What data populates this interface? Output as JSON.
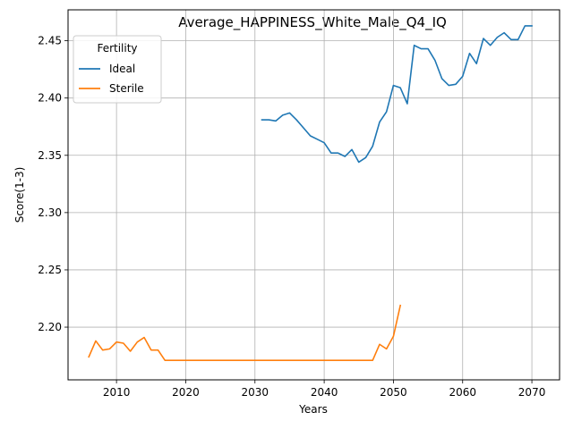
{
  "chart_data": {
    "type": "line",
    "title": "Average_HAPPINESS_White_Male_Q4_IQ",
    "xlabel": "Years",
    "ylabel": "Score(1-3)",
    "xlim": [
      2003,
      2074
    ],
    "ylim": [
      2.154,
      2.477
    ],
    "xticks": [
      2010,
      2020,
      2030,
      2040,
      2050,
      2060,
      2070
    ],
    "yticks": [
      2.2,
      2.25,
      2.3,
      2.35,
      2.4,
      2.45
    ],
    "grid": true,
    "legend": {
      "title": "Fertility",
      "placement": "top-left"
    },
    "series": [
      {
        "name": "Ideal",
        "color": "#1f77b4",
        "x": [
          2031,
          2032,
          2033,
          2034,
          2035,
          2036,
          2037,
          2038,
          2039,
          2040,
          2041,
          2042,
          2043,
          2044,
          2045,
          2046,
          2047,
          2048,
          2049,
          2050,
          2051,
          2052,
          2053,
          2054,
          2055,
          2056,
          2057,
          2058,
          2059,
          2060,
          2061,
          2062,
          2063,
          2064,
          2065,
          2066,
          2067,
          2068,
          2069,
          2070
        ],
        "values": [
          2.381,
          2.381,
          2.38,
          2.385,
          2.387,
          2.381,
          2.374,
          2.367,
          2.364,
          2.361,
          2.352,
          2.352,
          2.349,
          2.355,
          2.344,
          2.348,
          2.358,
          2.379,
          2.388,
          2.411,
          2.409,
          2.395,
          2.446,
          2.443,
          2.443,
          2.433,
          2.417,
          2.411,
          2.412,
          2.419,
          2.439,
          2.43,
          2.452,
          2.446,
          2.453,
          2.457,
          2.451,
          2.451,
          2.463,
          2.463
        ]
      },
      {
        "name": "Sterile",
        "color": "#ff7f0e",
        "x": [
          2006,
          2007,
          2008,
          2009,
          2010,
          2011,
          2012,
          2013,
          2014,
          2015,
          2016,
          2017,
          2018,
          2019,
          2020,
          2021,
          2022,
          2023,
          2024,
          2025,
          2026,
          2027,
          2028,
          2029,
          2030,
          2031,
          2032,
          2033,
          2034,
          2035,
          2036,
          2037,
          2038,
          2039,
          2040,
          2041,
          2042,
          2043,
          2044,
          2045,
          2046,
          2047,
          2048,
          2049,
          2050,
          2051
        ],
        "values": [
          2.174,
          2.188,
          2.18,
          2.181,
          2.187,
          2.186,
          2.179,
          2.187,
          2.191,
          2.18,
          2.18,
          2.171,
          2.171,
          2.171,
          2.171,
          2.171,
          2.171,
          2.171,
          2.171,
          2.171,
          2.171,
          2.171,
          2.171,
          2.171,
          2.171,
          2.171,
          2.171,
          2.171,
          2.171,
          2.171,
          2.171,
          2.171,
          2.171,
          2.171,
          2.171,
          2.171,
          2.171,
          2.171,
          2.171,
          2.171,
          2.171,
          2.171,
          2.185,
          2.181,
          2.192,
          2.219
        ]
      }
    ]
  }
}
